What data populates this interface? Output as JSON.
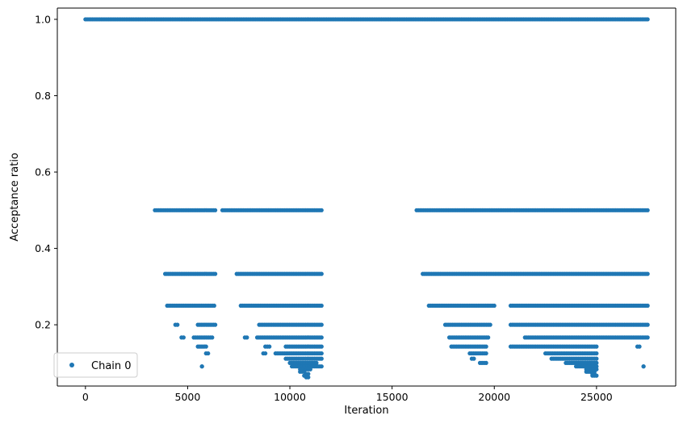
{
  "chart_data": {
    "type": "scatter",
    "title": "",
    "xlabel": "Iteration",
    "ylabel": "Acceptance ratio",
    "xlim": [
      -1375,
      28875
    ],
    "ylim": [
      0.0395,
      1.0295
    ],
    "xticks": [
      0,
      5000,
      10000,
      15000,
      20000,
      25000
    ],
    "xtick_labels": [
      "0",
      "5000",
      "10000",
      "15000",
      "20000",
      "25000"
    ],
    "yticks": [
      0.2,
      0.4,
      0.6,
      0.8,
      1.0
    ],
    "ytick_labels": [
      "0.2",
      "0.4",
      "0.6",
      "0.8",
      "1.0"
    ],
    "grid": false,
    "legend": {
      "position": "lower-left",
      "entries": [
        "Chain 0"
      ]
    },
    "series": [
      {
        "name": "Chain 0",
        "color": "#1f77b4",
        "marker": "dot",
        "segments": [
          {
            "y": 1.0,
            "x_ranges": [
              [
                0,
                27500
              ]
            ]
          },
          {
            "y": 0.5,
            "x_ranges": [
              [
                3400,
                6350
              ],
              [
                6700,
                11550
              ],
              [
                16200,
                27500
              ]
            ]
          },
          {
            "y": 0.3333,
            "x_ranges": [
              [
                3900,
                6350
              ],
              [
                7400,
                11550
              ],
              [
                16500,
                27500
              ]
            ]
          },
          {
            "y": 0.25,
            "x_ranges": [
              [
                4000,
                6300
              ],
              [
                7600,
                11550
              ],
              [
                16800,
                20000
              ],
              [
                20800,
                27500
              ]
            ]
          },
          {
            "y": 0.2,
            "x_ranges": [
              [
                4400,
                4500
              ],
              [
                5500,
                6350
              ],
              [
                8500,
                11550
              ],
              [
                17600,
                19800
              ],
              [
                20800,
                27500
              ]
            ]
          },
          {
            "y": 0.1667,
            "x_ranges": [
              [
                4700,
                4800
              ],
              [
                5300,
                6200
              ],
              [
                7800,
                7900
              ],
              [
                8400,
                11550
              ],
              [
                17800,
                19700
              ],
              [
                21500,
                27500
              ]
            ]
          },
          {
            "y": 0.1429,
            "x_ranges": [
              [
                5500,
                5900
              ],
              [
                8800,
                9000
              ],
              [
                9800,
                11550
              ],
              [
                17900,
                19600
              ],
              [
                20800,
                25000
              ],
              [
                27000,
                27100
              ]
            ]
          },
          {
            "y": 0.125,
            "x_ranges": [
              [
                5900,
                6000
              ],
              [
                8700,
                8800
              ],
              [
                9300,
                11550
              ],
              [
                18800,
                19600
              ],
              [
                22500,
                25000
              ]
            ]
          },
          {
            "y": 0.1111,
            "x_ranges": [
              [
                9800,
                11550
              ],
              [
                18900,
                19000
              ],
              [
                22800,
                25000
              ]
            ]
          },
          {
            "y": 0.1,
            "x_ranges": [
              [
                10000,
                11300
              ],
              [
                19300,
                19600
              ],
              [
                23500,
                25000
              ]
            ]
          },
          {
            "y": 0.0909,
            "x_ranges": [
              [
                5700,
                5700
              ],
              [
                10100,
                11550
              ],
              [
                24000,
                25000
              ],
              [
                27300,
                27300
              ]
            ]
          },
          {
            "y": 0.0833,
            "x_ranges": [
              [
                10500,
                11000
              ],
              [
                24500,
                25000
              ]
            ]
          },
          {
            "y": 0.0769,
            "x_ranges": [
              [
                10500,
                10700
              ],
              [
                24500,
                24900
              ]
            ]
          },
          {
            "y": 0.0714,
            "x_ranges": [
              [
                10800,
                10900
              ],
              [
                24800,
                24900
              ]
            ]
          },
          {
            "y": 0.0667,
            "x_ranges": [
              [
                10700,
                10800
              ],
              [
                24800,
                25000
              ]
            ]
          },
          {
            "y": 0.0625,
            "x_ranges": [
              [
                10800,
                10900
              ]
            ]
          }
        ]
      }
    ]
  }
}
